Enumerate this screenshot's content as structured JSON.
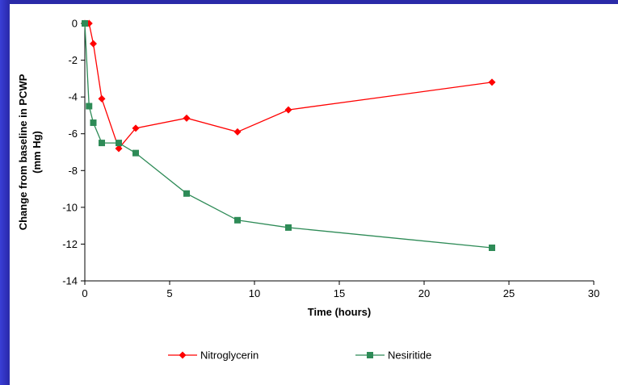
{
  "chart_data": {
    "type": "line",
    "xlabel": "Time (hours)",
    "ylabel": [
      "Change from baseline in PCWP",
      "(mm Hg)"
    ],
    "xlim": [
      0,
      30
    ],
    "ylim": [
      -14,
      0
    ],
    "x_ticks": [
      0,
      5,
      10,
      15,
      20,
      25,
      30
    ],
    "y_ticks": [
      0,
      -2,
      -4,
      -6,
      -8,
      -10,
      -12,
      -14
    ],
    "grid": false,
    "legend_position": "bottom",
    "series": [
      {
        "name": "Nitroglycerin",
        "color": "#ff0000",
        "marker": "diamond",
        "x": [
          0,
          0.25,
          0.5,
          1,
          2,
          3,
          6,
          9,
          12,
          24
        ],
        "y": [
          0,
          0,
          -1.1,
          -4.1,
          -6.8,
          -5.7,
          -5.15,
          -5.9,
          -4.7,
          -3.2
        ]
      },
      {
        "name": "Nesiritide",
        "color": "#2e8b57",
        "marker": "square",
        "x": [
          0,
          0.25,
          0.5,
          1,
          2,
          3,
          6,
          9,
          12,
          24
        ],
        "y": [
          0,
          -4.5,
          -5.4,
          -6.5,
          -6.5,
          -7.05,
          -9.25,
          -10.7,
          -11.1,
          -12.2
        ]
      }
    ]
  }
}
